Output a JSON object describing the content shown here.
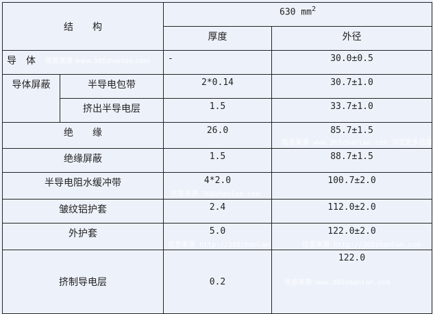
{
  "header": {
    "structure": "结　　构",
    "size": "630 mm",
    "size_exponent": "2",
    "thickness": "厚度",
    "outer_diameter": "外径"
  },
  "rows": [
    {
      "name": "导　体",
      "thickness": "-",
      "diameter": "30.0±0.5"
    },
    {
      "group": "导体屏蔽",
      "name": "半导电包带",
      "thickness": "2*0.14",
      "diameter": "30.7±1.0"
    },
    {
      "name": "挤出半导电层",
      "thickness": "1.5",
      "diameter": "33.7±1.0"
    },
    {
      "name": "绝　　缘",
      "thickness": "26.0",
      "diameter": "85.7±1.5"
    },
    {
      "name": "绝缘屏蔽",
      "thickness": "1.5",
      "diameter": "88.7±1.5"
    },
    {
      "name": "半导电阻水缓冲带",
      "thickness": "4*2.0",
      "diameter": "100.7±2.0"
    },
    {
      "name": "皱纹铝护套",
      "thickness": "2.4",
      "diameter": "112.0±2.0"
    },
    {
      "name": "外护套",
      "thickness": "5.0",
      "diameter": "122.0±2.0"
    },
    {
      "name": "挤制导电层",
      "thickness": "0.2",
      "diameter": "122.0"
    }
  ],
  "watermarks": [
    "信息来源 www.365zhanlan.com",
    "信息来源 www.365zhanlan.com 浏览更多信息",
    "信息来源.365zhanlan.com",
    "信息来源 http://365zhanlan.com",
    "信息来源 http://365zhanlan.com",
    "信息来源 www.365zhanlan.com"
  ]
}
